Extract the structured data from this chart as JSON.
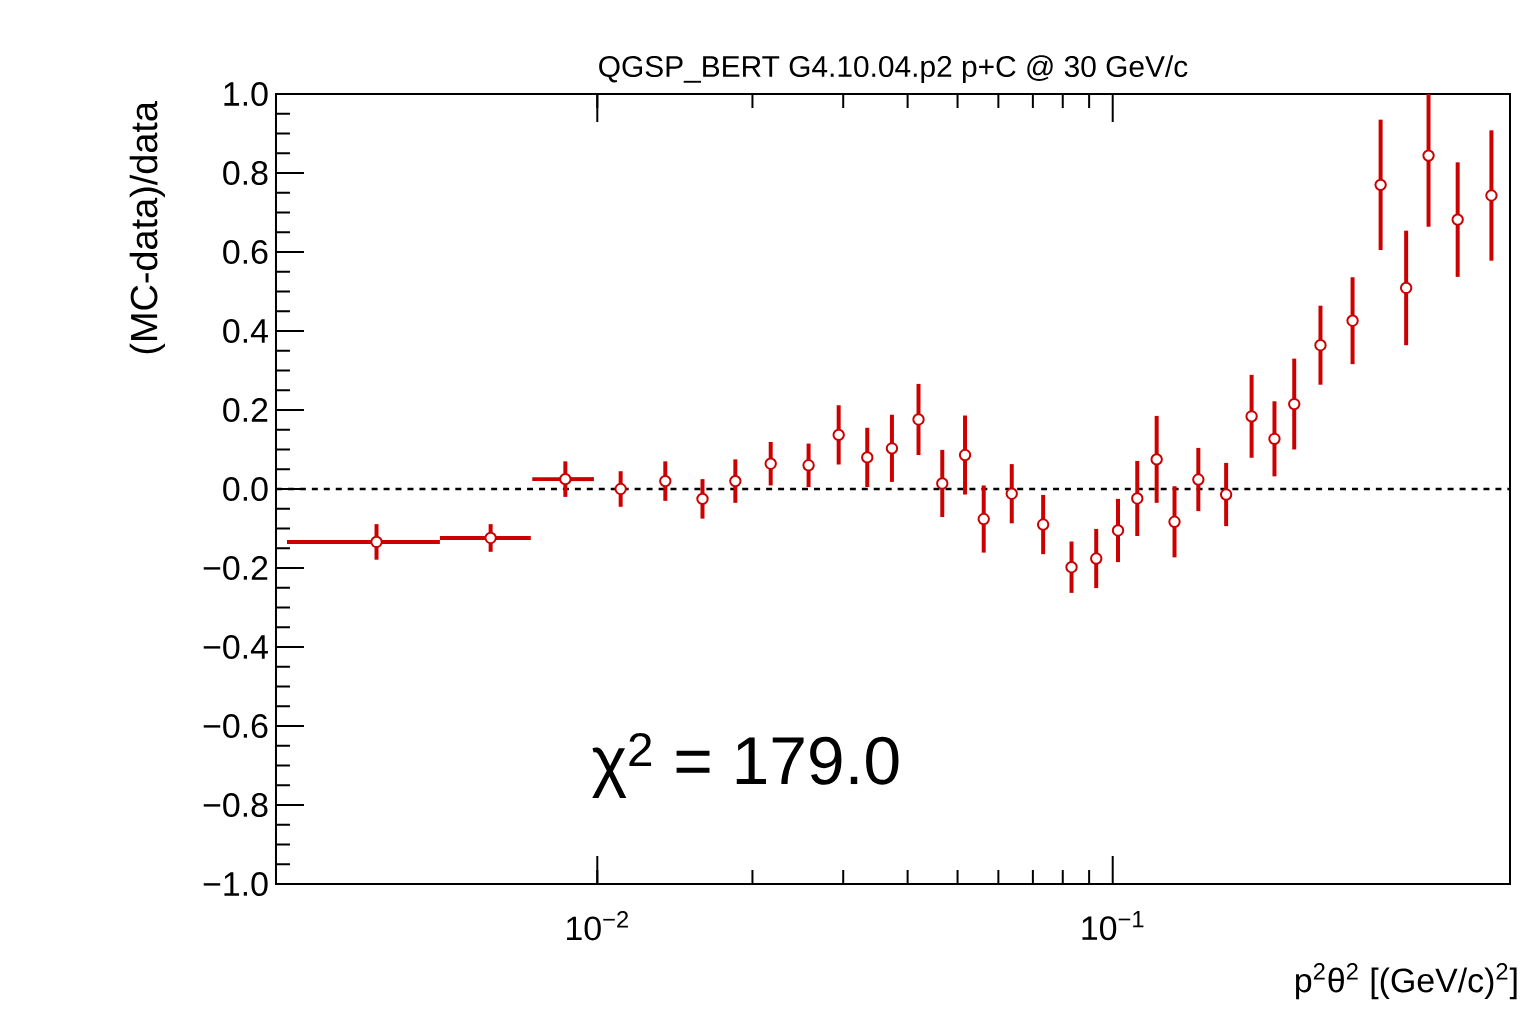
{
  "chart_data": {
    "type": "scatter",
    "title": "QGSP_BERT G4.10.04.p2 p+C @ 30 GeV/c",
    "xlabel": "p$^{2}$θ$^{2}$ [(GeV/c)$^{2}$]",
    "ylabel": "(MC-data)/data",
    "log": "x",
    "marker": "circle",
    "x": [
      0.00373,
      0.00621,
      0.00867,
      0.0111,
      0.01355,
      0.016,
      0.01853,
      0.0217,
      0.0257,
      0.0294,
      0.0334,
      0.0373,
      0.042,
      0.0467,
      0.0517,
      0.0562,
      0.0637,
      0.0733,
      0.0832,
      0.0929,
      0.1024,
      0.1116,
      0.1217,
      0.1318,
      0.1466,
      0.166,
      0.186,
      0.206,
      0.225,
      0.253,
      0.292,
      0.331,
      0.371,
      0.41,
      0.467,
      0.543
    ],
    "series": [
      {
        "color": "#cc0000",
        "values": [
          -0.134,
          -0.124,
          0.025,
          0.0,
          0.02,
          -0.025,
          0.02,
          0.064,
          0.06,
          0.137,
          0.08,
          0.103,
          0.176,
          0.014,
          0.086,
          -0.076,
          -0.012,
          -0.09,
          -0.198,
          -0.176,
          -0.105,
          -0.024,
          0.075,
          -0.083,
          0.024,
          -0.014,
          0.184,
          0.127,
          0.215,
          0.364,
          0.426,
          0.77,
          0.509,
          0.844,
          0.682,
          0.743
        ],
        "errors": [
          0.045,
          0.035,
          0.045,
          0.045,
          0.05,
          0.05,
          0.055,
          0.055,
          0.055,
          0.075,
          0.075,
          0.085,
          0.09,
          0.085,
          0.1,
          0.085,
          0.075,
          0.075,
          0.065,
          0.075,
          0.08,
          0.095,
          0.11,
          0.09,
          0.08,
          0.08,
          0.105,
          0.095,
          0.115,
          0.1,
          0.11,
          0.165,
          0.145,
          [
            0.664,
            1.0
          ],
          0.145,
          0.165
        ],
        "xerrors": [
          [
            0.0025,
            0.00495
          ],
          [
            0.00495,
            0.00743
          ],
          [
            0.00748,
            0.00985
          ],
          null,
          null,
          null,
          null,
          null,
          null,
          null,
          null,
          null,
          null,
          null,
          null,
          null,
          null,
          null,
          null,
          null,
          null,
          null,
          null,
          null,
          null,
          null,
          null,
          null,
          null,
          null,
          null,
          null,
          null,
          null,
          null,
          null
        ]
      }
    ],
    "xlim": [
      0.00238,
      0.59
    ],
    "ylim": [
      -1.0,
      1.0
    ],
    "xticks": [
      {
        "value": 0.01,
        "label": "10$^{−2}$"
      },
      {
        "value": 0.1,
        "label": "10$^{−1}$"
      }
    ],
    "yticks": [
      {
        "value": -1.0,
        "label": "−1.0"
      },
      {
        "value": -0.8,
        "label": "−0.8"
      },
      {
        "value": -0.6,
        "label": "−0.6"
      },
      {
        "value": -0.4,
        "label": "−0.4"
      },
      {
        "value": -0.2,
        "label": "−0.2"
      },
      {
        "value": 0.0,
        "label": "0.0"
      },
      {
        "value": 0.2,
        "label": "0.2"
      },
      {
        "value": 0.4,
        "label": "0.4"
      },
      {
        "value": 0.6,
        "label": "0.6"
      },
      {
        "value": 0.8,
        "label": "0.8"
      },
      {
        "value": 1.0,
        "label": "1.0"
      }
    ],
    "ref_lines": [
      {
        "axis": "y",
        "value": 0.0,
        "color": "#000000",
        "line_style": "dashed"
      }
    ],
    "annotations": [
      "χ$^{2}$ = 179.0"
    ]
  }
}
